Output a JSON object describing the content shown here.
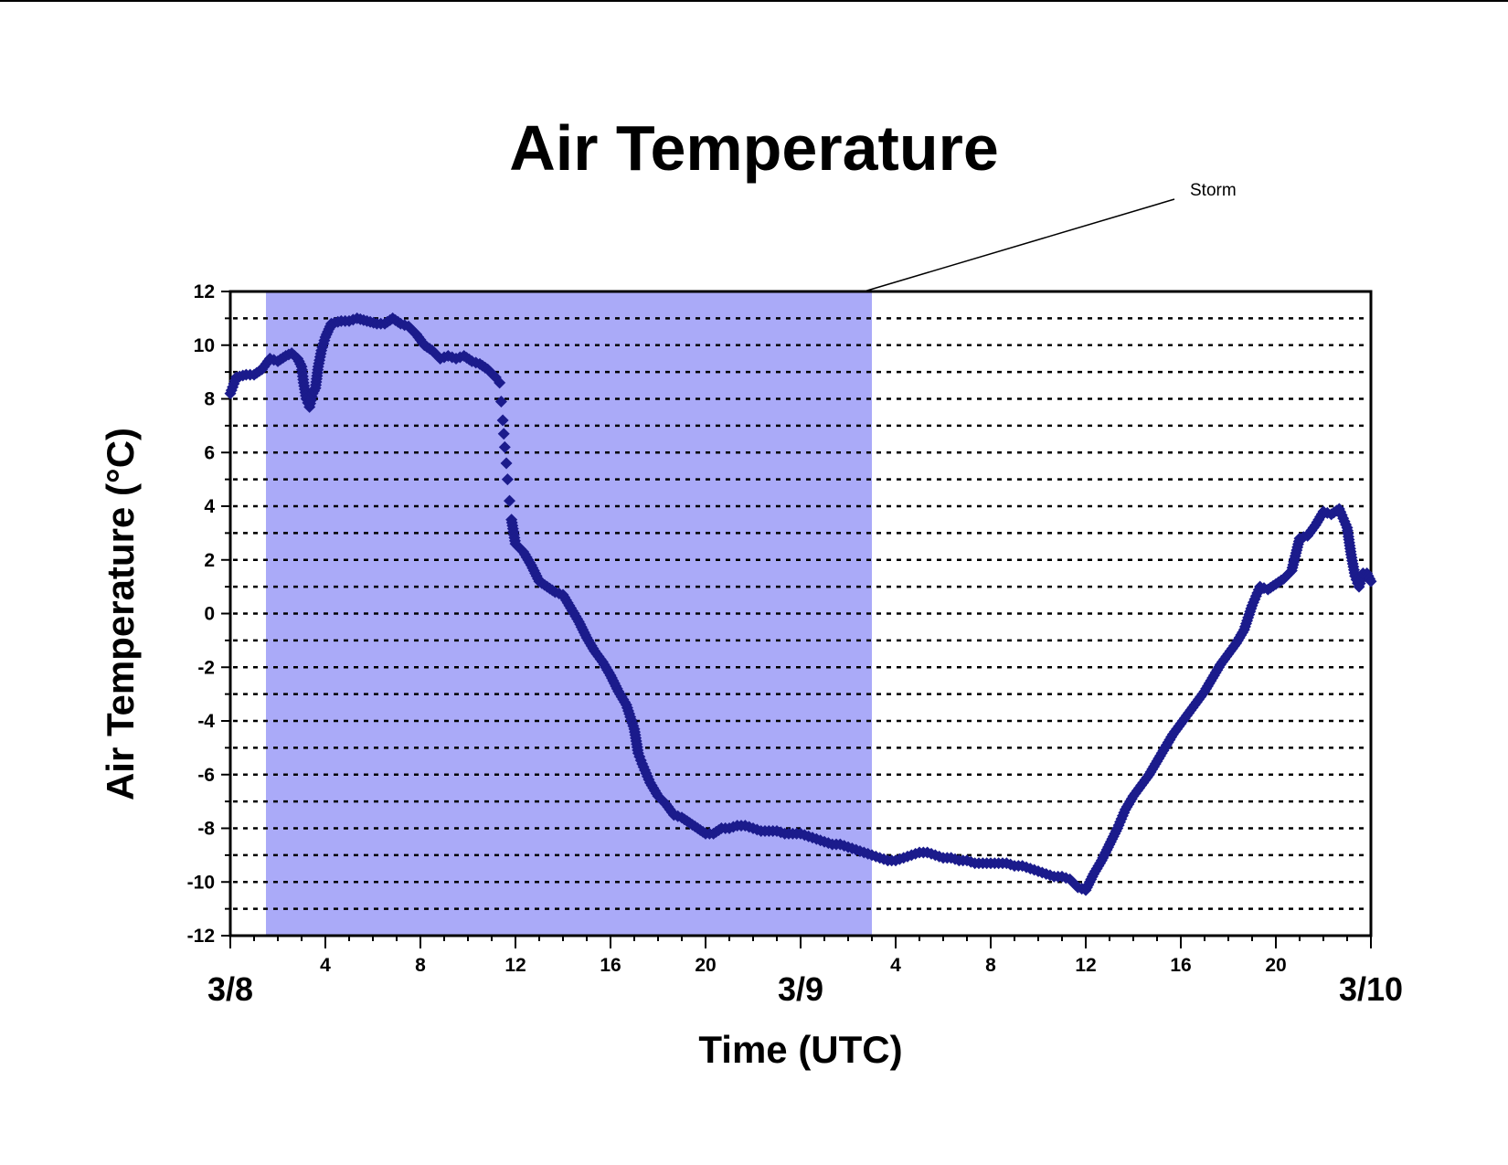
{
  "chart_data": {
    "type": "scatter",
    "title": "Air Temperature",
    "xlabel": "Time (UTC)",
    "ylabel": "Air Temperature (°C)",
    "xlim": [
      "3/8 00:00",
      "3/10 00:00"
    ],
    "ylim": [
      -12,
      12
    ],
    "y_ticks": [
      "12",
      "10",
      "8",
      "6",
      "4",
      "2",
      "0",
      "-2",
      "-4",
      "-6",
      "-8",
      "-10",
      "-12"
    ],
    "x_hour_ticks": [
      {
        "x": "3/8 04:00",
        "label": "4"
      },
      {
        "x": "3/8 08:00",
        "label": "8"
      },
      {
        "x": "3/8 12:00",
        "label": "12"
      },
      {
        "x": "3/8 16:00",
        "label": "16"
      },
      {
        "x": "3/8 20:00",
        "label": "20"
      },
      {
        "x": "3/9 04:00",
        "label": "4"
      },
      {
        "x": "3/9 08:00",
        "label": "8"
      },
      {
        "x": "3/9 12:00",
        "label": "12"
      },
      {
        "x": "3/9 16:00",
        "label": "16"
      },
      {
        "x": "3/9 20:00",
        "label": "20"
      }
    ],
    "x_date_labels": [
      {
        "x": "3/8 00:00",
        "label": "3/8"
      },
      {
        "x": "3/9 00:00",
        "label": "3/9"
      },
      {
        "x": "3/10 00:00",
        "label": "3/10"
      }
    ],
    "grid": "horizontal dotted",
    "shaded_region": {
      "x_start": "3/8 01:30",
      "x_end": "3/9 03:00",
      "color": "#aaaaf8"
    },
    "annotation": {
      "text": "Storm",
      "points_to": "3/9 02:40"
    },
    "marker_color": "#1b1b8c",
    "series": [
      {
        "marker": "diamond",
        "points": [
          {
            "x": "3/8 00:00",
            "y": 8.2
          },
          {
            "x": "3/8 00:15",
            "y": 8.8
          },
          {
            "x": "3/8 00:40",
            "y": 8.9
          },
          {
            "x": "3/8 01:00",
            "y": 8.9
          },
          {
            "x": "3/8 01:20",
            "y": 9.1
          },
          {
            "x": "3/8 01:40",
            "y": 9.5
          },
          {
            "x": "3/8 02:00",
            "y": 9.4
          },
          {
            "x": "3/8 02:20",
            "y": 9.6
          },
          {
            "x": "3/8 02:35",
            "y": 9.7
          },
          {
            "x": "3/8 02:50",
            "y": 9.5
          },
          {
            "x": "3/8 03:00",
            "y": 9.2
          },
          {
            "x": "3/8 03:05",
            "y": 8.6
          },
          {
            "x": "3/8 03:12",
            "y": 8.0
          },
          {
            "x": "3/8 03:20",
            "y": 7.7
          },
          {
            "x": "3/8 03:28",
            "y": 8.2
          },
          {
            "x": "3/8 03:35",
            "y": 8.4
          },
          {
            "x": "3/8 03:42",
            "y": 9.2
          },
          {
            "x": "3/8 03:50",
            "y": 9.8
          },
          {
            "x": "3/8 04:00",
            "y": 10.3
          },
          {
            "x": "3/8 04:15",
            "y": 10.8
          },
          {
            "x": "3/8 04:40",
            "y": 10.9
          },
          {
            "x": "3/8 05:00",
            "y": 10.9
          },
          {
            "x": "3/8 05:20",
            "y": 11.0
          },
          {
            "x": "3/8 05:45",
            "y": 10.9
          },
          {
            "x": "3/8 06:10",
            "y": 10.8
          },
          {
            "x": "3/8 06:30",
            "y": 10.8
          },
          {
            "x": "3/8 06:50",
            "y": 11.0
          },
          {
            "x": "3/8 07:10",
            "y": 10.8
          },
          {
            "x": "3/8 07:30",
            "y": 10.7
          },
          {
            "x": "3/8 07:50",
            "y": 10.4
          },
          {
            "x": "3/8 08:10",
            "y": 10.0
          },
          {
            "x": "3/8 08:30",
            "y": 9.8
          },
          {
            "x": "3/8 08:50",
            "y": 9.5
          },
          {
            "x": "3/8 09:10",
            "y": 9.6
          },
          {
            "x": "3/8 09:30",
            "y": 9.5
          },
          {
            "x": "3/8 09:50",
            "y": 9.6
          },
          {
            "x": "3/8 10:10",
            "y": 9.4
          },
          {
            "x": "3/8 10:30",
            "y": 9.3
          },
          {
            "x": "3/8 10:50",
            "y": 9.1
          },
          {
            "x": "3/8 11:10",
            "y": 8.8
          },
          {
            "x": "3/8 11:20",
            "y": 8.6
          },
          {
            "x": "3/8 11:28",
            "y": 7.2
          },
          {
            "x": "3/8 11:33",
            "y": 6.2
          },
          {
            "x": "3/8 11:37",
            "y": 5.6
          },
          {
            "x": "3/8 11:40",
            "y": 5.0
          },
          {
            "x": "3/8 11:45",
            "y": 4.2
          },
          {
            "x": "3/8 11:50",
            "y": 3.5
          },
          {
            "x": "3/8 12:00",
            "y": 2.6
          },
          {
            "x": "3/8 12:20",
            "y": 2.3
          },
          {
            "x": "3/8 12:40",
            "y": 1.8
          },
          {
            "x": "3/8 13:00",
            "y": 1.2
          },
          {
            "x": "3/8 13:20",
            "y": 1.0
          },
          {
            "x": "3/8 13:40",
            "y": 0.8
          },
          {
            "x": "3/8 14:00",
            "y": 0.7
          },
          {
            "x": "3/8 14:20",
            "y": 0.2
          },
          {
            "x": "3/8 14:40",
            "y": -0.3
          },
          {
            "x": "3/8 15:00",
            "y": -0.9
          },
          {
            "x": "3/8 15:20",
            "y": -1.4
          },
          {
            "x": "3/8 15:40",
            "y": -1.8
          },
          {
            "x": "3/8 16:00",
            "y": -2.3
          },
          {
            "x": "3/8 16:20",
            "y": -2.9
          },
          {
            "x": "3/8 16:40",
            "y": -3.4
          },
          {
            "x": "3/8 17:00",
            "y": -4.3
          },
          {
            "x": "3/8 17:10",
            "y": -5.2
          },
          {
            "x": "3/8 17:20",
            "y": -5.6
          },
          {
            "x": "3/8 17:40",
            "y": -6.3
          },
          {
            "x": "3/8 18:00",
            "y": -6.8
          },
          {
            "x": "3/8 18:20",
            "y": -7.1
          },
          {
            "x": "3/8 18:40",
            "y": -7.5
          },
          {
            "x": "3/8 19:00",
            "y": -7.6
          },
          {
            "x": "3/8 19:20",
            "y": -7.8
          },
          {
            "x": "3/8 19:40",
            "y": -8.0
          },
          {
            "x": "3/8 20:00",
            "y": -8.2
          },
          {
            "x": "3/8 20:20",
            "y": -8.2
          },
          {
            "x": "3/8 20:40",
            "y": -8.0
          },
          {
            "x": "3/8 21:00",
            "y": -8.0
          },
          {
            "x": "3/8 21:20",
            "y": -7.9
          },
          {
            "x": "3/8 21:40",
            "y": -7.9
          },
          {
            "x": "3/8 22:00",
            "y": -8.0
          },
          {
            "x": "3/8 22:20",
            "y": -8.1
          },
          {
            "x": "3/8 22:40",
            "y": -8.1
          },
          {
            "x": "3/8 23:00",
            "y": -8.1
          },
          {
            "x": "3/8 23:20",
            "y": -8.2
          },
          {
            "x": "3/8 23:40",
            "y": -8.2
          },
          {
            "x": "3/9 00:00",
            "y": -8.2
          },
          {
            "x": "3/9 00:20",
            "y": -8.3
          },
          {
            "x": "3/9 00:40",
            "y": -8.4
          },
          {
            "x": "3/9 01:00",
            "y": -8.5
          },
          {
            "x": "3/9 01:20",
            "y": -8.6
          },
          {
            "x": "3/9 01:40",
            "y": -8.6
          },
          {
            "x": "3/9 02:00",
            "y": -8.7
          },
          {
            "x": "3/9 02:20",
            "y": -8.8
          },
          {
            "x": "3/9 02:40",
            "y": -8.9
          },
          {
            "x": "3/9 03:00",
            "y": -9.0
          },
          {
            "x": "3/9 03:20",
            "y": -9.1
          },
          {
            "x": "3/9 03:40",
            "y": -9.2
          },
          {
            "x": "3/9 04:00",
            "y": -9.2
          },
          {
            "x": "3/9 04:20",
            "y": -9.1
          },
          {
            "x": "3/9 04:40",
            "y": -9.0
          },
          {
            "x": "3/9 05:00",
            "y": -8.9
          },
          {
            "x": "3/9 05:20",
            "y": -8.9
          },
          {
            "x": "3/9 05:40",
            "y": -9.0
          },
          {
            "x": "3/9 06:00",
            "y": -9.1
          },
          {
            "x": "3/9 06:20",
            "y": -9.1
          },
          {
            "x": "3/9 06:40",
            "y": -9.2
          },
          {
            "x": "3/9 07:00",
            "y": -9.2
          },
          {
            "x": "3/9 07:20",
            "y": -9.3
          },
          {
            "x": "3/9 07:40",
            "y": -9.3
          },
          {
            "x": "3/9 08:00",
            "y": -9.3
          },
          {
            "x": "3/9 08:20",
            "y": -9.3
          },
          {
            "x": "3/9 08:40",
            "y": -9.3
          },
          {
            "x": "3/9 09:00",
            "y": -9.4
          },
          {
            "x": "3/9 09:20",
            "y": -9.4
          },
          {
            "x": "3/9 09:40",
            "y": -9.5
          },
          {
            "x": "3/9 10:00",
            "y": -9.6
          },
          {
            "x": "3/9 10:20",
            "y": -9.7
          },
          {
            "x": "3/9 10:40",
            "y": -9.8
          },
          {
            "x": "3/9 11:00",
            "y": -9.8
          },
          {
            "x": "3/9 11:20",
            "y": -9.9
          },
          {
            "x": "3/9 11:40",
            "y": -10.2
          },
          {
            "x": "3/9 12:00",
            "y": -10.3
          },
          {
            "x": "3/9 12:10",
            "y": -10.0
          },
          {
            "x": "3/9 12:20",
            "y": -9.7
          },
          {
            "x": "3/9 12:40",
            "y": -9.2
          },
          {
            "x": "3/9 13:00",
            "y": -8.6
          },
          {
            "x": "3/9 13:20",
            "y": -8.0
          },
          {
            "x": "3/9 13:40",
            "y": -7.3
          },
          {
            "x": "3/9 14:00",
            "y": -6.8
          },
          {
            "x": "3/9 14:20",
            "y": -6.4
          },
          {
            "x": "3/9 14:40",
            "y": -6.0
          },
          {
            "x": "3/9 15:00",
            "y": -5.5
          },
          {
            "x": "3/9 15:20",
            "y": -5.0
          },
          {
            "x": "3/9 15:40",
            "y": -4.5
          },
          {
            "x": "3/9 16:00",
            "y": -4.1
          },
          {
            "x": "3/9 16:20",
            "y": -3.7
          },
          {
            "x": "3/9 16:40",
            "y": -3.3
          },
          {
            "x": "3/9 17:00",
            "y": -2.9
          },
          {
            "x": "3/9 17:20",
            "y": -2.4
          },
          {
            "x": "3/9 17:40",
            "y": -1.9
          },
          {
            "x": "3/9 18:00",
            "y": -1.5
          },
          {
            "x": "3/9 18:20",
            "y": -1.1
          },
          {
            "x": "3/9 18:40",
            "y": -0.6
          },
          {
            "x": "3/9 19:00",
            "y": 0.3
          },
          {
            "x": "3/9 19:20",
            "y": 1.0
          },
          {
            "x": "3/9 19:40",
            "y": 0.9
          },
          {
            "x": "3/9 20:00",
            "y": 1.1
          },
          {
            "x": "3/9 20:20",
            "y": 1.3
          },
          {
            "x": "3/9 20:40",
            "y": 1.6
          },
          {
            "x": "3/9 21:00",
            "y": 2.8
          },
          {
            "x": "3/9 21:20",
            "y": 2.9
          },
          {
            "x": "3/9 21:40",
            "y": 3.3
          },
          {
            "x": "3/9 22:00",
            "y": 3.8
          },
          {
            "x": "3/9 22:20",
            "y": 3.7
          },
          {
            "x": "3/9 22:40",
            "y": 3.9
          },
          {
            "x": "3/9 23:00",
            "y": 3.2
          },
          {
            "x": "3/9 23:10",
            "y": 2.2
          },
          {
            "x": "3/9 23:20",
            "y": 1.4
          },
          {
            "x": "3/9 23:30",
            "y": 1.0
          },
          {
            "x": "3/9 23:40",
            "y": 1.5
          },
          {
            "x": "3/9 23:50",
            "y": 1.5
          },
          {
            "x": "3/10 00:00",
            "y": 1.2
          }
        ]
      }
    ]
  }
}
